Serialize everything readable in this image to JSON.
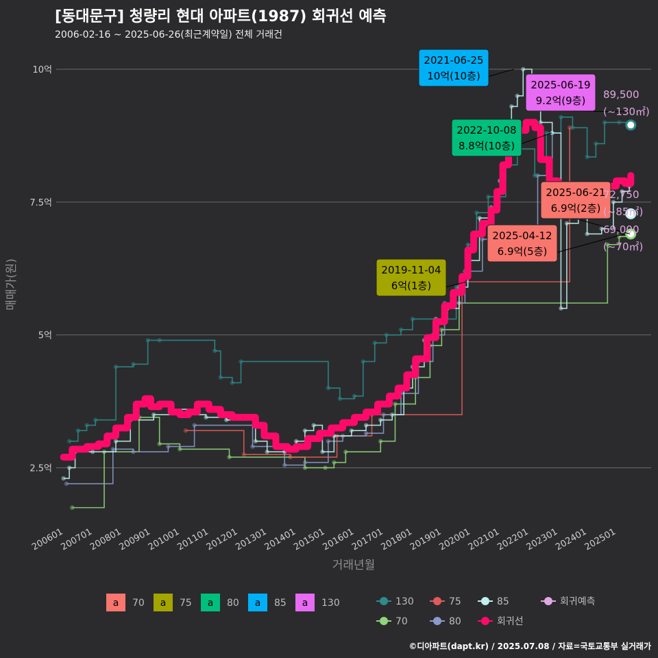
{
  "title": "[동대문구] 청량리 현대 아파트(1987) 회귀선 예측",
  "subtitle": "2006-02-16 ~ 2025-06-26(최근계약일) 전체 거래건",
  "footer": "©디아파트(dapt.kr) / 2025.07.08 / 자료=국토교통부 실거래가",
  "colors": {
    "a70": "#f8766d",
    "a75": "#a3a500",
    "a80": "#00bf7d",
    "a85": "#00b0f6",
    "a130": "#e76bf3",
    "l130": "#2e8b8b",
    "l70": "#8fd67a",
    "l75": "#e05a5a",
    "l80": "#8a9ac9",
    "l85": "#bff0ee",
    "reg": "#ff0a6a",
    "pred": "#e0a8e0"
  },
  "chart_data": {
    "type": "line",
    "xlabel": "거래년월",
    "ylabel": "매매가(원)",
    "x_ticks": [
      "200601",
      "200701",
      "200801",
      "200901",
      "201001",
      "201101",
      "201201",
      "201301",
      "201401",
      "201501",
      "201601",
      "201701",
      "201801",
      "201901",
      "202001",
      "202101",
      "202201",
      "202301",
      "202401",
      "202501"
    ],
    "y_ticks": [
      {
        "value": 2.5,
        "label": "2.5억"
      },
      {
        "value": 5,
        "label": "5억"
      },
      {
        "value": 7.5,
        "label": "7.5억"
      },
      {
        "value": 10,
        "label": "10억"
      }
    ],
    "ylim": [
      1.5,
      10.4
    ],
    "xlim": [
      2005.75,
      2026.2
    ],
    "regression": [
      [
        2006.0,
        2.7
      ],
      [
        2006.3,
        2.85
      ],
      [
        2006.8,
        2.9
      ],
      [
        2007.2,
        2.95
      ],
      [
        2007.5,
        3.1
      ],
      [
        2007.8,
        3.25
      ],
      [
        2008.2,
        3.45
      ],
      [
        2008.5,
        3.7
      ],
      [
        2008.8,
        3.8
      ],
      [
        2009.0,
        3.65
      ],
      [
        2009.3,
        3.7
      ],
      [
        2009.7,
        3.55
      ],
      [
        2010.0,
        3.5
      ],
      [
        2010.3,
        3.55
      ],
      [
        2010.6,
        3.7
      ],
      [
        2011.0,
        3.6
      ],
      [
        2011.4,
        3.5
      ],
      [
        2011.8,
        3.45
      ],
      [
        2012.2,
        3.45
      ],
      [
        2012.6,
        3.3
      ],
      [
        2012.9,
        3.1
      ],
      [
        2013.3,
        2.9
      ],
      [
        2013.7,
        2.85
      ],
      [
        2014.0,
        2.9
      ],
      [
        2014.4,
        3.05
      ],
      [
        2014.8,
        3.15
      ],
      [
        2015.2,
        3.25
      ],
      [
        2015.6,
        3.35
      ],
      [
        2016.0,
        3.45
      ],
      [
        2016.4,
        3.55
      ],
      [
        2016.8,
        3.7
      ],
      [
        2017.2,
        3.85
      ],
      [
        2017.5,
        4.0
      ],
      [
        2017.8,
        4.25
      ],
      [
        2018.1,
        4.55
      ],
      [
        2018.5,
        4.95
      ],
      [
        2018.8,
        5.25
      ],
      [
        2019.1,
        5.55
      ],
      [
        2019.4,
        5.8
      ],
      [
        2019.7,
        6.1
      ],
      [
        2019.9,
        6.6
      ],
      [
        2020.1,
        6.9
      ],
      [
        2020.4,
        7.1
      ],
      [
        2020.7,
        7.35
      ],
      [
        2020.9,
        7.7
      ],
      [
        2021.1,
        8.2
      ],
      [
        2021.3,
        8.5
      ],
      [
        2021.6,
        8.85
      ],
      [
        2021.9,
        9.0
      ],
      [
        2022.2,
        8.9
      ],
      [
        2022.4,
        8.3
      ],
      [
        2022.7,
        7.9
      ],
      [
        2023.0,
        7.8
      ],
      [
        2023.4,
        7.7
      ],
      [
        2023.8,
        7.6
      ],
      [
        2024.2,
        7.65
      ],
      [
        2024.6,
        7.8
      ],
      [
        2025.0,
        7.9
      ],
      [
        2025.3,
        7.85
      ],
      [
        2025.5,
        8.0
      ]
    ],
    "series": [
      {
        "name": "130",
        "points": [
          [
            2006.2,
            3.0
          ],
          [
            2006.5,
            3.2
          ],
          [
            2006.8,
            3.3
          ],
          [
            2007.1,
            3.4
          ],
          [
            2007.8,
            4.4
          ],
          [
            2008.4,
            4.45
          ],
          [
            2008.9,
            4.9
          ],
          [
            2009.3,
            4.9
          ],
          [
            2011.2,
            4.7
          ],
          [
            2011.4,
            4.2
          ],
          [
            2011.8,
            4.1
          ],
          [
            2012.1,
            4.5
          ],
          [
            2015.1,
            4.0
          ],
          [
            2015.5,
            3.8
          ],
          [
            2016.0,
            3.85
          ],
          [
            2016.3,
            4.5
          ],
          [
            2016.7,
            4.85
          ],
          [
            2017.1,
            5.0
          ],
          [
            2017.6,
            5.1
          ],
          [
            2018.0,
            5.3
          ],
          [
            2019.5,
            5.9
          ],
          [
            2019.9,
            6.7
          ],
          [
            2020.2,
            7.3
          ],
          [
            2020.6,
            7.6
          ],
          [
            2021.2,
            8.2
          ],
          [
            2021.6,
            8.5
          ],
          [
            2022.2,
            8.0
          ],
          [
            2022.6,
            8.8
          ],
          [
            2023.1,
            9.1
          ],
          [
            2023.5,
            8.9
          ],
          [
            2024.0,
            8.35
          ],
          [
            2024.3,
            8.6
          ],
          [
            2024.6,
            9.0
          ],
          [
            2025.1,
            9.0
          ],
          [
            2025.45,
            8.95
          ]
        ]
      },
      {
        "name": "70",
        "points": [
          [
            2006.3,
            1.75
          ],
          [
            2007.4,
            2.8
          ],
          [
            2008.6,
            3.45
          ],
          [
            2009.3,
            2.95
          ],
          [
            2010.0,
            2.85
          ],
          [
            2011.7,
            2.7
          ],
          [
            2014.3,
            2.5
          ],
          [
            2015.0,
            2.5
          ],
          [
            2015.3,
            2.6
          ],
          [
            2015.7,
            2.8
          ],
          [
            2016.9,
            3.0
          ],
          [
            2017.4,
            3.7
          ],
          [
            2018.1,
            4.2
          ],
          [
            2018.6,
            4.8
          ],
          [
            2019.0,
            5.1
          ],
          [
            2019.6,
            5.6
          ],
          [
            2024.7,
            6.7
          ],
          [
            2025.1,
            6.85
          ],
          [
            2025.45,
            6.9
          ]
        ]
      },
      {
        "name": "75",
        "points": [
          [
            2010.2,
            3.2
          ],
          [
            2012.2,
            2.75
          ],
          [
            2013.8,
            2.7
          ],
          [
            2015.4,
            3.1
          ],
          [
            2016.6,
            3.5
          ],
          [
            2019.7,
            6.0
          ],
          [
            2023.4,
            8.9
          ]
        ]
      },
      {
        "name": "80",
        "points": [
          [
            2006.1,
            2.2
          ],
          [
            2007.7,
            2.85
          ],
          [
            2008.4,
            2.8
          ],
          [
            2009.6,
            2.9
          ],
          [
            2010.5,
            3.3
          ],
          [
            2012.5,
            2.9
          ],
          [
            2013.6,
            2.55
          ],
          [
            2014.3,
            2.6
          ],
          [
            2015.1,
            3.0
          ],
          [
            2015.6,
            3.1
          ],
          [
            2016.4,
            3.15
          ],
          [
            2017.0,
            3.5
          ],
          [
            2017.6,
            3.9
          ],
          [
            2018.2,
            4.5
          ],
          [
            2018.7,
            5.0
          ],
          [
            2019.1,
            5.6
          ],
          [
            2019.8,
            6.2
          ],
          [
            2020.4,
            6.8
          ],
          [
            2022.3,
            8.0
          ],
          [
            2022.8,
            8.8
          ]
        ]
      },
      {
        "name": "85",
        "points": [
          [
            2006.0,
            2.3
          ],
          [
            2006.2,
            2.5
          ],
          [
            2006.4,
            2.8
          ],
          [
            2007.0,
            2.8
          ],
          [
            2007.8,
            3.0
          ],
          [
            2008.3,
            3.4
          ],
          [
            2009.1,
            3.5
          ],
          [
            2009.7,
            3.6
          ],
          [
            2010.3,
            3.5
          ],
          [
            2010.9,
            3.45
          ],
          [
            2011.6,
            3.4
          ],
          [
            2012.1,
            3.45
          ],
          [
            2012.6,
            3.0
          ],
          [
            2013.0,
            2.8
          ],
          [
            2013.6,
            2.8
          ],
          [
            2014.0,
            3.0
          ],
          [
            2014.3,
            3.2
          ],
          [
            2014.6,
            3.3
          ],
          [
            2014.9,
            2.8
          ],
          [
            2015.3,
            3.1
          ],
          [
            2015.9,
            3.2
          ],
          [
            2016.4,
            3.3
          ],
          [
            2016.9,
            3.4
          ],
          [
            2017.3,
            3.5
          ],
          [
            2017.7,
            4.0
          ],
          [
            2018.0,
            4.4
          ],
          [
            2018.4,
            4.9
          ],
          [
            2018.8,
            5.3
          ],
          [
            2019.2,
            5.5
          ],
          [
            2019.6,
            5.9
          ],
          [
            2019.9,
            6.4
          ],
          [
            2020.3,
            7.2
          ],
          [
            2020.7,
            7.4
          ],
          [
            2021.0,
            7.9
          ],
          [
            2021.2,
            8.5
          ],
          [
            2021.4,
            9.3
          ],
          [
            2021.6,
            9.5
          ],
          [
            2021.8,
            10.0
          ],
          [
            2022.1,
            9.8
          ],
          [
            2022.4,
            9.0
          ],
          [
            2022.8,
            8.8
          ],
          [
            2023.1,
            5.5
          ],
          [
            2023.3,
            7.1
          ],
          [
            2023.7,
            7.2
          ],
          [
            2024.0,
            6.9
          ],
          [
            2024.5,
            7.0
          ],
          [
            2024.9,
            7.5
          ],
          [
            2025.2,
            7.7
          ],
          [
            2025.45,
            7.8
          ]
        ]
      }
    ],
    "labels": [
      {
        "date": "2021-06-25",
        "price": "10억(10층)",
        "type": "85",
        "x": 2021.48,
        "y": 10.0
      },
      {
        "date": "2025-06-19",
        "price": "9.2억(9층)",
        "type": "130",
        "x": 2025.46,
        "y": 9.2
      },
      {
        "date": "2022-10-08",
        "price": "8.8억(10층)",
        "type": "80",
        "x": 2022.77,
        "y": 8.8
      },
      {
        "date": "2025-06-21",
        "price": "6.9억(2층)",
        "type": "70",
        "x": 2025.47,
        "y": 6.9
      },
      {
        "date": "2025-04-12",
        "price": "6.9억(5층)",
        "type": "70",
        "x": 2025.28,
        "y": 6.9
      },
      {
        "date": "2019-11-04",
        "price": "6억(1층)",
        "type": "75",
        "x": 2019.84,
        "y": 6.0
      }
    ],
    "predictions": [
      {
        "value": "89,500",
        "area": "(~130㎡)",
        "type": "130",
        "x": 2025.5,
        "y": 8.95
      },
      {
        "value": "72,750",
        "area": "(~85㎡)",
        "type": "85",
        "x": 2025.5,
        "y": 7.28
      },
      {
        "value": "69,000",
        "area": "(~70㎡)",
        "type": "70",
        "x": 2025.5,
        "y": 6.9
      }
    ]
  },
  "legend": {
    "fill_keys": [
      {
        "glyph": "a",
        "label": "70",
        "color": "#f8766d"
      },
      {
        "glyph": "a",
        "label": "75",
        "color": "#a3a500"
      },
      {
        "glyph": "a",
        "label": "80",
        "color": "#00bf7d"
      },
      {
        "glyph": "a",
        "label": "85",
        "color": "#00b0f6"
      },
      {
        "glyph": "a",
        "label": "130",
        "color": "#e76bf3"
      }
    ],
    "line_keys": [
      {
        "label": "130",
        "color": "#2e8b8b"
      },
      {
        "label": "75",
        "color": "#e05a5a"
      },
      {
        "label": "85",
        "color": "#bff0ee"
      },
      {
        "label": "회귀예측",
        "color": "#e0a8e0"
      },
      {
        "label": "70",
        "color": "#8fd67a"
      },
      {
        "label": "80",
        "color": "#8a9ac9"
      },
      {
        "label": "회귀선",
        "color": "#ff0a6a"
      }
    ]
  }
}
